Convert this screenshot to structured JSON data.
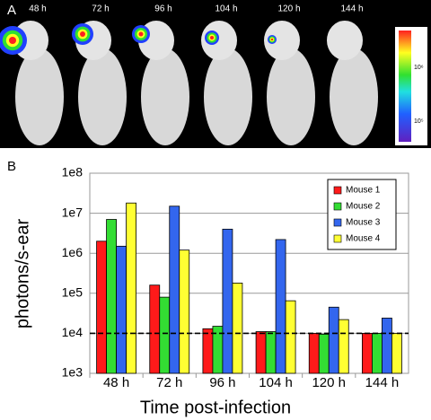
{
  "panel_a": {
    "label": "A",
    "times": [
      "48 h",
      "72 h",
      "96 h",
      "104 h",
      "120 h",
      "144 h"
    ],
    "colorbar_labels": [
      "10⁶",
      "10⁵"
    ]
  },
  "chart_data": {
    "type": "bar",
    "panel_label": "B",
    "x_label": "Time post-infection",
    "y_label": "photons/s-ear",
    "categories": [
      "48 h",
      "72 h",
      "96 h",
      "104 h",
      "120 h",
      "144 h"
    ],
    "series": [
      {
        "name": "Mouse 1",
        "color": "#ff1a1a",
        "values": [
          2000000,
          160000,
          13000,
          11000,
          10000,
          10000
        ]
      },
      {
        "name": "Mouse 2",
        "color": "#33dd33",
        "values": [
          7000000,
          80000,
          15000,
          11000,
          9500,
          10000
        ]
      },
      {
        "name": "Mouse 3",
        "color": "#3366ee",
        "values": [
          1500000,
          15000000,
          4000000,
          2200000,
          45000,
          24000
        ]
      },
      {
        "name": "Mouse 4",
        "color": "#ffff33",
        "values": [
          18000000,
          1200000,
          180000,
          65000,
          22000,
          10000
        ]
      }
    ],
    "log_scale": true,
    "ylim": [
      1000,
      100000000
    ],
    "yticks": [
      {
        "value": 1000,
        "label": "1e3"
      },
      {
        "value": 10000,
        "label": "1e4"
      },
      {
        "value": 100000,
        "label": "1e5"
      },
      {
        "value": 1000000,
        "label": "1e6"
      },
      {
        "value": 10000000,
        "label": "1e7"
      },
      {
        "value": 100000000,
        "label": "1e8"
      }
    ],
    "grid": true,
    "reference_line": 10000,
    "legend": "upper right"
  }
}
